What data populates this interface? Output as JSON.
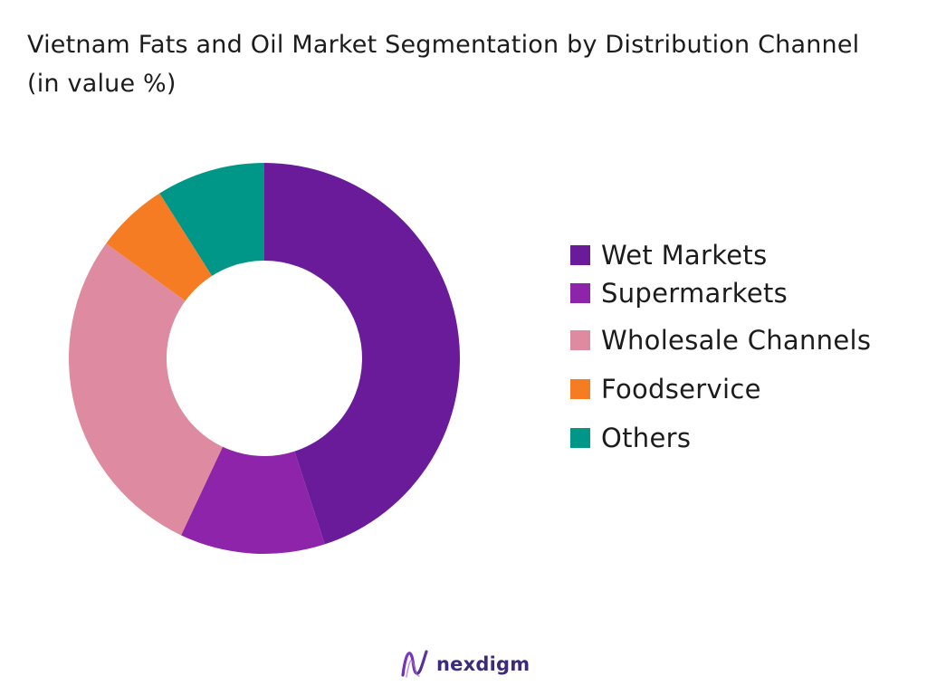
{
  "chart_data": {
    "type": "pie",
    "title": "Vietnam Fats and Oil Market Segmentation by Distribution Channel (in value %)",
    "donut": true,
    "legend_position": "right",
    "categories": [
      "Wet Markets",
      "Supermarkets",
      "Wholesale Channels",
      "Foodservice",
      "Others"
    ],
    "values": [
      45,
      12,
      28,
      6,
      9
    ],
    "colors": [
      "#6a1b9a",
      "#8e24aa",
      "#de8aa0",
      "#f57c22",
      "#009688"
    ]
  },
  "brand": {
    "name": "nexdigm",
    "color": "#3d2a7a"
  }
}
